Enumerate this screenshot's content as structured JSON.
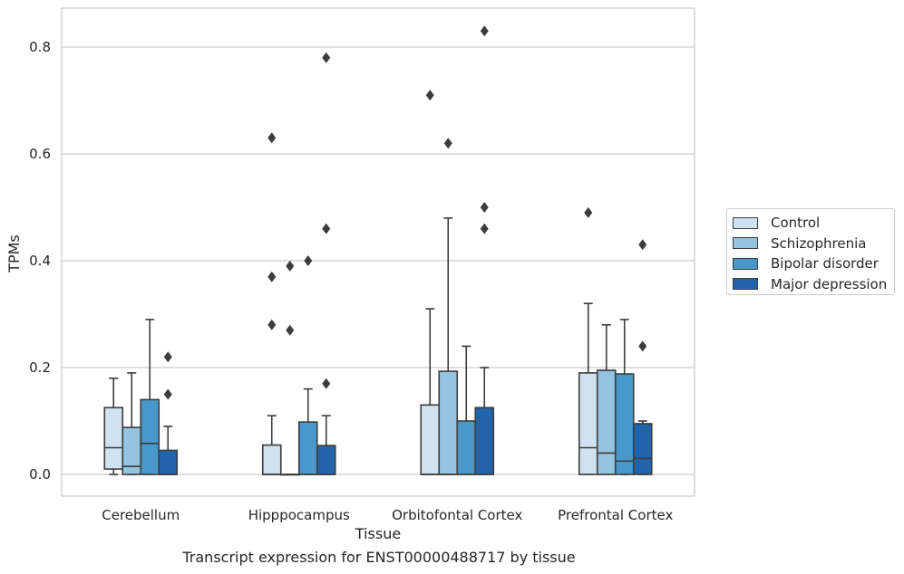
{
  "chart_data": {
    "type": "box",
    "title": "",
    "caption": "Transcript expression for ENST00000488717 by tissue",
    "xlabel": "Tissue",
    "ylabel": "TPMs",
    "ylim": [
      -0.04,
      0.875
    ],
    "yticks": [
      "0.0",
      "0.2",
      "0.4",
      "0.6",
      "0.8"
    ],
    "grid": "horizontal",
    "legend_position": "right",
    "categories": [
      "Cerebellum",
      "Hipppocampus",
      "Orbitofontal Cortex",
      "Prefrontal Cortex"
    ],
    "series": [
      {
        "name": "Control",
        "color": "#d0e1f2",
        "boxes": [
          {
            "min": 0.0,
            "q1": 0.01,
            "median": 0.05,
            "q3": 0.125,
            "max": 0.18,
            "outliers": []
          },
          {
            "min": 0.0,
            "q1": 0.0,
            "median": 0.0,
            "q3": 0.055,
            "max": 0.11,
            "outliers": [
              0.28,
              0.37,
              0.63
            ]
          },
          {
            "min": 0.0,
            "q1": 0.0,
            "median": 0.0,
            "q3": 0.13,
            "max": 0.31,
            "outliers": [
              0.71
            ]
          },
          {
            "min": 0.0,
            "q1": 0.0,
            "median": 0.05,
            "q3": 0.19,
            "max": 0.32,
            "outliers": [
              0.49
            ]
          }
        ]
      },
      {
        "name": "Schizophrenia",
        "color": "#94c4df",
        "boxes": [
          {
            "min": 0.0,
            "q1": 0.0,
            "median": 0.015,
            "q3": 0.088,
            "max": 0.19,
            "outliers": []
          },
          {
            "min": 0.0,
            "q1": 0.0,
            "median": 0.0,
            "q3": 0.0,
            "max": 0.0,
            "outliers": [
              0.27,
              0.39
            ]
          },
          {
            "min": 0.0,
            "q1": 0.0,
            "median": 0.0,
            "q3": 0.193,
            "max": 0.48,
            "outliers": [
              0.62
            ]
          },
          {
            "min": 0.0,
            "q1": 0.0,
            "median": 0.04,
            "q3": 0.195,
            "max": 0.28,
            "outliers": []
          }
        ]
      },
      {
        "name": "Bipolar disorder",
        "color": "#4a98c9",
        "boxes": [
          {
            "min": 0.0,
            "q1": 0.0,
            "median": 0.058,
            "q3": 0.14,
            "max": 0.29,
            "outliers": []
          },
          {
            "min": 0.0,
            "q1": 0.0,
            "median": 0.0,
            "q3": 0.098,
            "max": 0.16,
            "outliers": [
              0.4
            ]
          },
          {
            "min": 0.0,
            "q1": 0.0,
            "median": 0.0,
            "q3": 0.1,
            "max": 0.24,
            "outliers": []
          },
          {
            "min": 0.0,
            "q1": 0.0,
            "median": 0.025,
            "q3": 0.188,
            "max": 0.29,
            "outliers": []
          }
        ]
      },
      {
        "name": "Major depression",
        "color": "#2164ab",
        "boxes": [
          {
            "min": 0.0,
            "q1": 0.0,
            "median": 0.0,
            "q3": 0.045,
            "max": 0.09,
            "outliers": [
              0.15,
              0.22
            ]
          },
          {
            "min": 0.0,
            "q1": 0.0,
            "median": 0.0,
            "q3": 0.054,
            "max": 0.11,
            "outliers": [
              0.17,
              0.46,
              0.78
            ]
          },
          {
            "min": 0.0,
            "q1": 0.0,
            "median": 0.0,
            "q3": 0.125,
            "max": 0.2,
            "outliers": [
              0.46,
              0.5,
              0.83
            ]
          },
          {
            "min": 0.0,
            "q1": 0.0,
            "median": 0.03,
            "q3": 0.095,
            "max": 0.1,
            "outliers": [
              0.24,
              0.43
            ]
          }
        ]
      }
    ]
  }
}
